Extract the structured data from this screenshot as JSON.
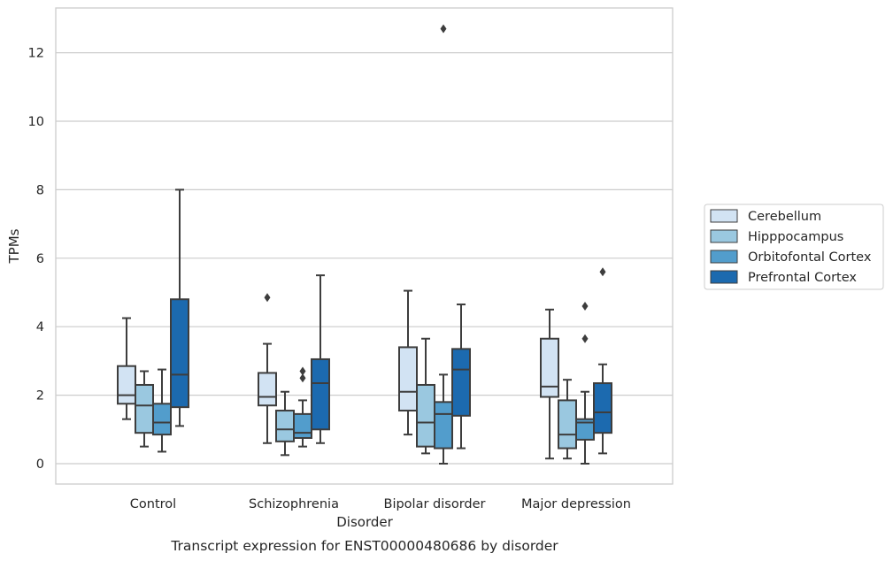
{
  "chart_data": {
    "type": "boxplot",
    "caption": "Transcript expression for ENST00000480686 by disorder",
    "xlabel": "Disorder",
    "ylabel": "TPMs",
    "ylim": [
      -0.6,
      13.4
    ],
    "yticks": [
      0,
      2,
      4,
      6,
      8,
      10,
      12
    ],
    "grid": "horizontal",
    "legend_position": "right",
    "categories": [
      "Control",
      "Schizophrenia",
      "Bipolar disorder",
      "Major depression"
    ],
    "series": [
      {
        "name": "Cerebellum",
        "color": "#d2e3f3",
        "boxes": [
          {
            "whislo": 1.3,
            "q1": 1.75,
            "med": 2.0,
            "q3": 2.85,
            "whishi": 4.25,
            "fliers": []
          },
          {
            "whislo": 0.6,
            "q1": 1.7,
            "med": 1.95,
            "q3": 2.65,
            "whishi": 3.5,
            "fliers": [
              4.85
            ]
          },
          {
            "whislo": 0.85,
            "q1": 1.55,
            "med": 2.1,
            "q3": 3.4,
            "whishi": 5.05,
            "fliers": []
          },
          {
            "whislo": 0.15,
            "q1": 1.95,
            "med": 2.25,
            "q3": 3.65,
            "whishi": 4.5,
            "fliers": []
          }
        ]
      },
      {
        "name": "Hipppocampus",
        "color": "#9ac8e0",
        "boxes": [
          {
            "whislo": 0.5,
            "q1": 0.9,
            "med": 1.7,
            "q3": 2.3,
            "whishi": 2.7,
            "fliers": []
          },
          {
            "whislo": 0.25,
            "q1": 0.65,
            "med": 1.0,
            "q3": 1.55,
            "whishi": 2.1,
            "fliers": []
          },
          {
            "whislo": 0.3,
            "q1": 0.5,
            "med": 1.2,
            "q3": 2.3,
            "whishi": 3.65,
            "fliers": []
          },
          {
            "whislo": 0.15,
            "q1": 0.45,
            "med": 0.85,
            "q3": 1.85,
            "whishi": 2.45,
            "fliers": []
          }
        ]
      },
      {
        "name": "Orbitofontal Cortex",
        "color": "#529dcc",
        "boxes": [
          {
            "whislo": 0.35,
            "q1": 0.85,
            "med": 1.2,
            "q3": 1.75,
            "whishi": 2.75,
            "fliers": []
          },
          {
            "whislo": 0.5,
            "q1": 0.75,
            "med": 0.9,
            "q3": 1.45,
            "whishi": 1.85,
            "fliers": [
              2.5,
              2.7
            ]
          },
          {
            "whislo": 0.0,
            "q1": 0.45,
            "med": 1.45,
            "q3": 1.8,
            "whishi": 2.6,
            "fliers": [
              12.7
            ]
          },
          {
            "whislo": 0.0,
            "q1": 0.7,
            "med": 1.2,
            "q3": 1.3,
            "whishi": 2.1,
            "fliers": [
              3.65,
              4.6
            ]
          }
        ]
      },
      {
        "name": "Prefrontal Cortex",
        "color": "#1c6aaf",
        "boxes": [
          {
            "whislo": 1.1,
            "q1": 1.65,
            "med": 2.6,
            "q3": 4.8,
            "whishi": 8.0,
            "fliers": []
          },
          {
            "whislo": 0.6,
            "q1": 1.0,
            "med": 2.35,
            "q3": 3.05,
            "whishi": 5.5,
            "fliers": []
          },
          {
            "whislo": 0.45,
            "q1": 1.4,
            "med": 2.75,
            "q3": 3.35,
            "whishi": 4.65,
            "fliers": []
          },
          {
            "whislo": 0.3,
            "q1": 0.9,
            "med": 1.5,
            "q3": 2.35,
            "whishi": 2.9,
            "fliers": [
              5.6
            ]
          }
        ]
      }
    ]
  }
}
